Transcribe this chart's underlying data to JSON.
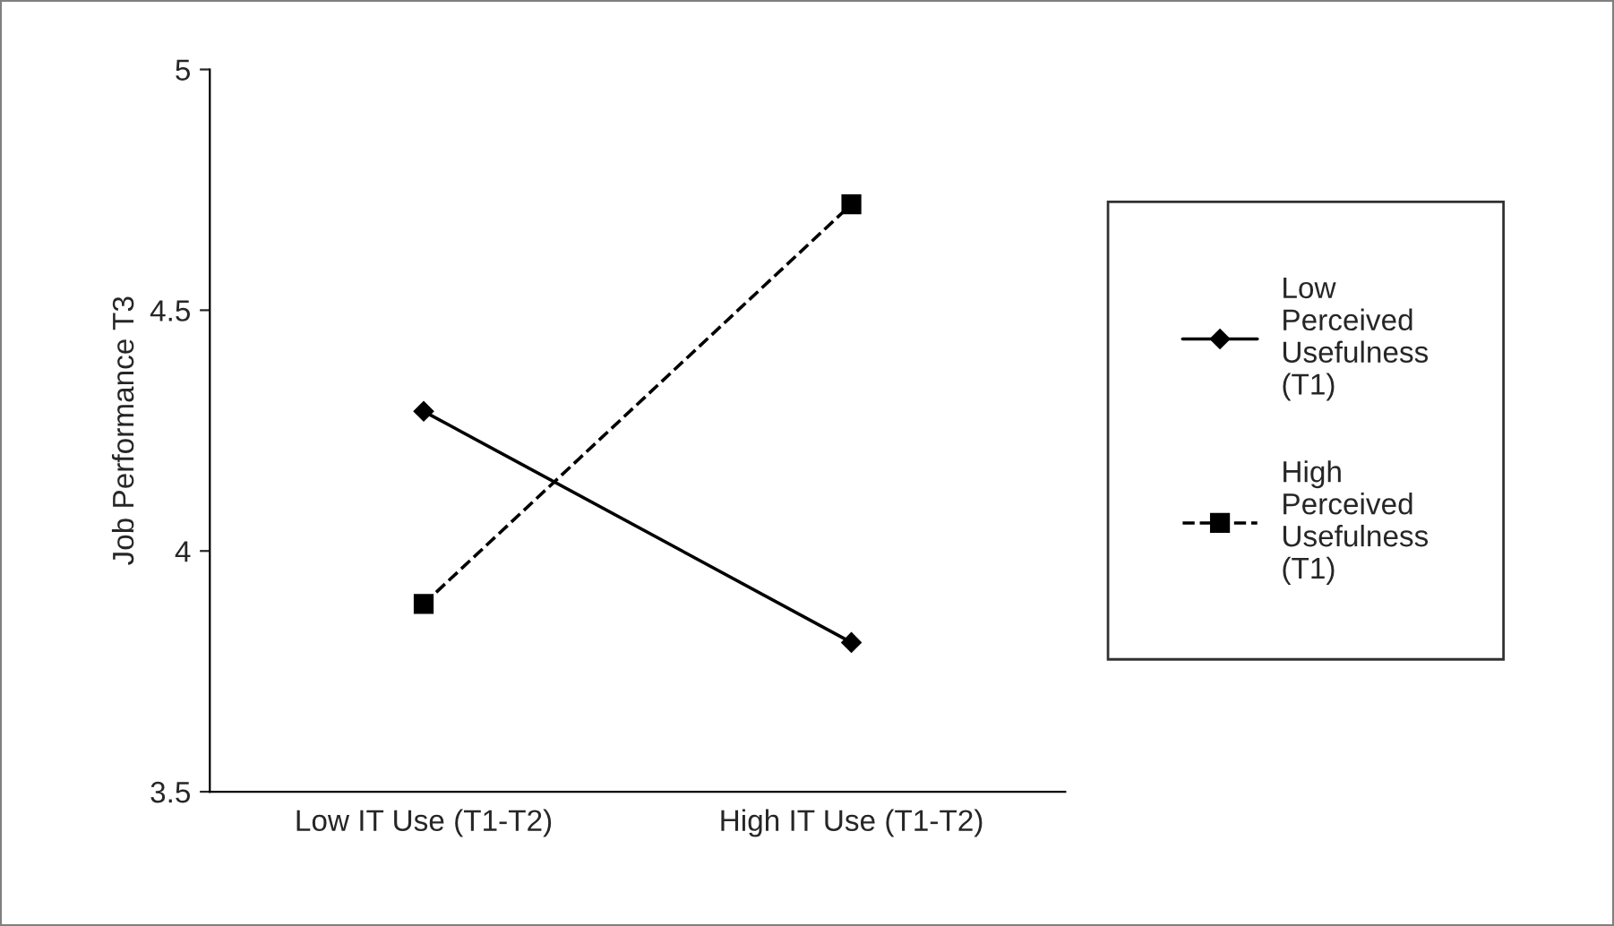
{
  "chart_data": {
    "type": "line",
    "ylabel": "Job Performance T3",
    "categories": [
      "Low IT Use (T1-T2)",
      "High IT Use (T1-T2)"
    ],
    "series": [
      {
        "name": "Low Perceived Usefulness (T1)",
        "color": "#000000",
        "values": [
          4.29,
          3.81
        ],
        "marker": "diamond",
        "line_style": "solid"
      },
      {
        "name": "High Perceived Usefulness (T1)",
        "color": "#000000",
        "values": [
          3.89,
          4.72
        ],
        "marker": "square",
        "line_style": "dashed"
      }
    ],
    "ylim": [
      3.5,
      5
    ],
    "yticks": [
      3.5,
      4,
      4.5,
      5
    ],
    "grid": false,
    "legend": "right"
  }
}
